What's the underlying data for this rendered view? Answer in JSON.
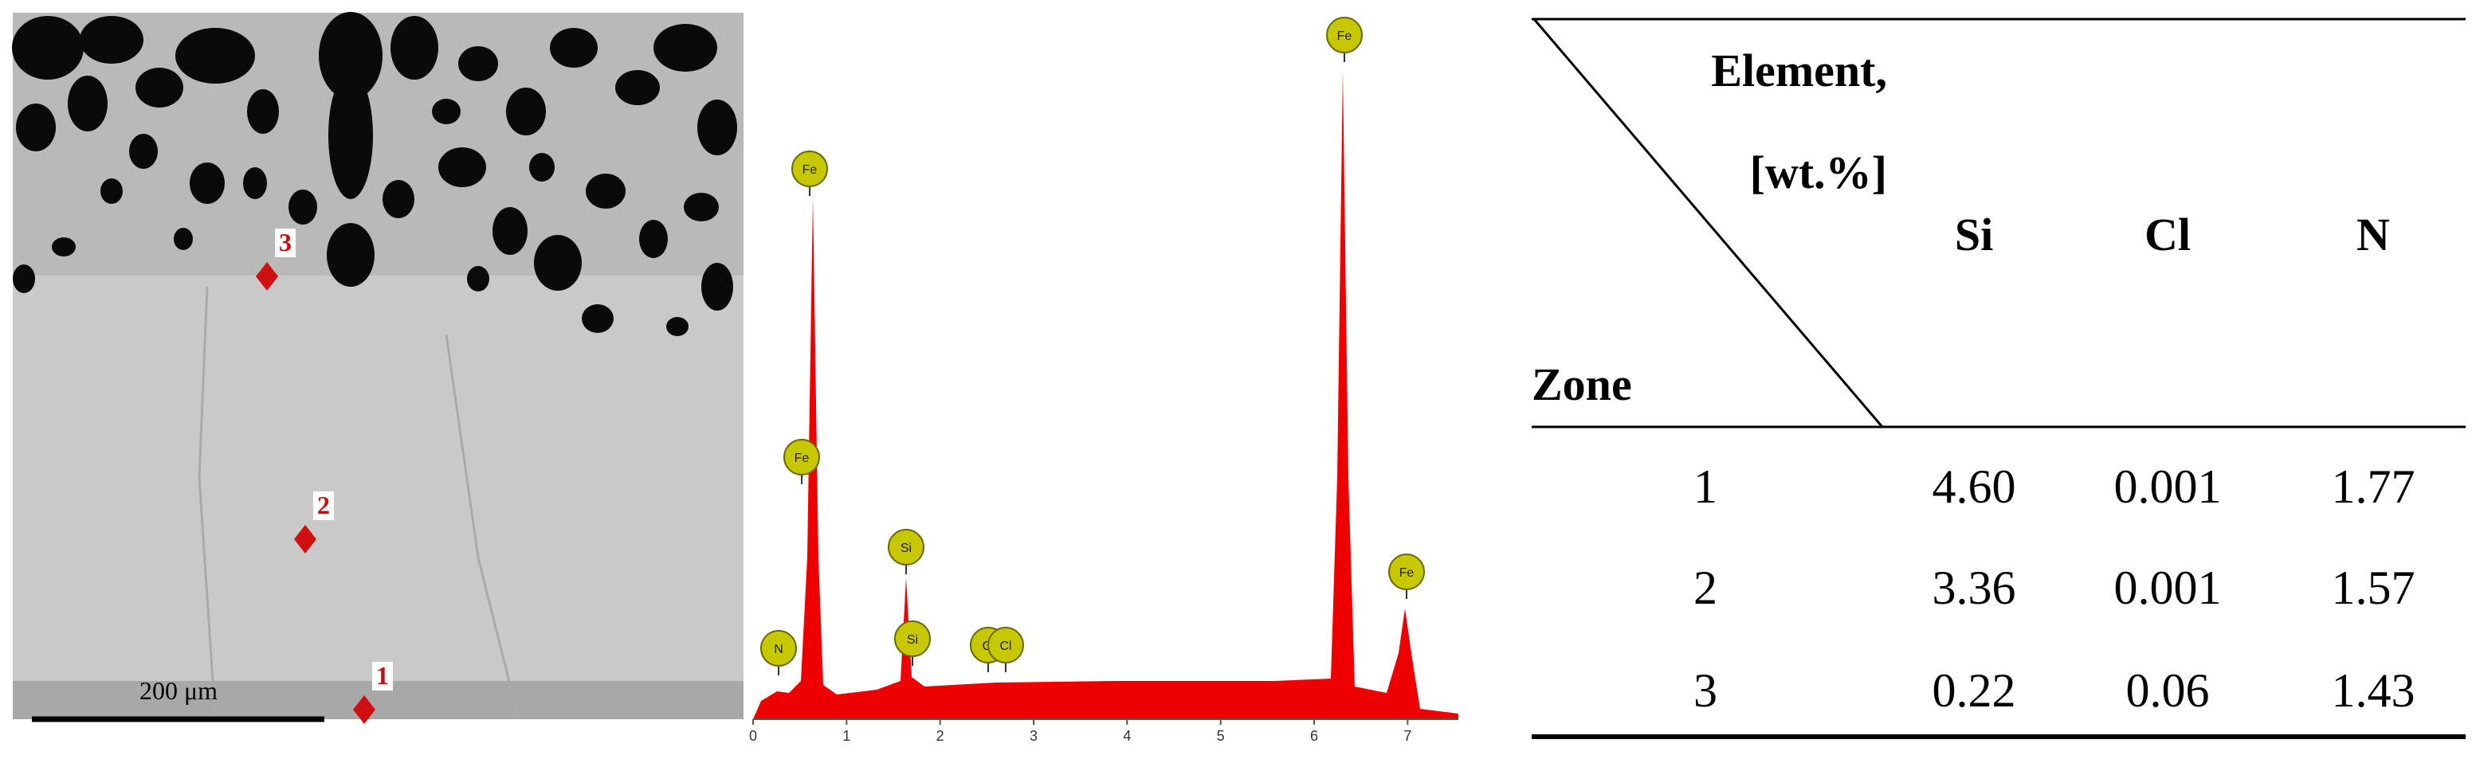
{
  "micrograph": {
    "markers": [
      "1",
      "2",
      "3"
    ],
    "scale_bar": "200 μm"
  },
  "spectrum": {
    "peak_labels": [
      "N",
      "Fe",
      "Fe",
      "Si",
      "Si",
      "Cl",
      "Cl",
      "Fe",
      "Fe"
    ],
    "xlim": [
      0,
      7.5
    ],
    "xticks": [
      0,
      1,
      2,
      3,
      4,
      5,
      6,
      7
    ]
  },
  "table": {
    "header": {
      "element": "Element,",
      "unit": "[wt.%]",
      "zone": "Zone",
      "columns": [
        "Si",
        "Cl",
        "N"
      ]
    },
    "rows": [
      [
        "1",
        "4.60",
        "0.001",
        "1.77"
      ],
      [
        "2",
        "3.36",
        "0.001",
        "1.57"
      ],
      [
        "3",
        "0.22",
        "0.06",
        "1.43"
      ]
    ]
  }
}
